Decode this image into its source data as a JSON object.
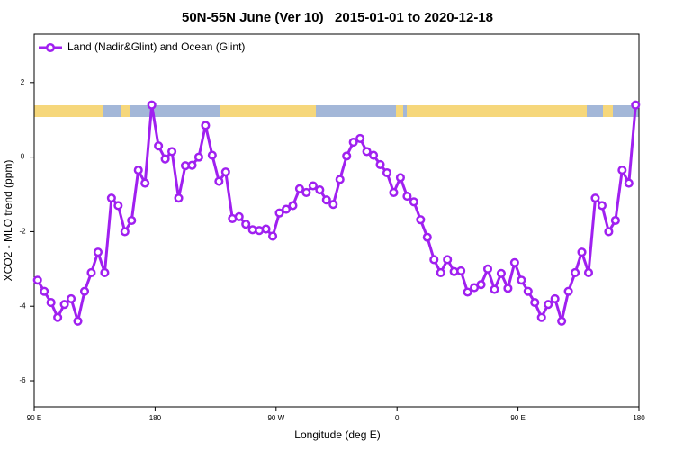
{
  "chart_data": {
    "type": "line",
    "title": "50N-55N June (Ver 10)   2015-01-01 to 2020-12-18",
    "x_label": "Longitude (deg E)",
    "y_label": "XCO2 - MLO trend (ppm)",
    "xlim": [
      90,
      540
    ],
    "ylim": [
      -6.7,
      3.3
    ],
    "xticks": [
      {
        "value": 90,
        "label": "90 E"
      },
      180,
      {
        "value": 270,
        "label": "90 W"
      },
      {
        "value": 360,
        "label": "0"
      },
      {
        "value": 450,
        "label": "90 E"
      },
      {
        "value": 540,
        "label": "180"
      }
    ],
    "yticks": [
      -6,
      -4,
      -2,
      0,
      2
    ],
    "legend": "top-left",
    "x": [
      92.5,
      97.5,
      102.5,
      107.5,
      112.5,
      117.5,
      122.5,
      127.5,
      132.5,
      137.5,
      142.5,
      147.5,
      152.5,
      157.5,
      162.5,
      167.5,
      172.5,
      177.5,
      182.5,
      187.5,
      192.5,
      197.5,
      202.5,
      207.5,
      212.5,
      217.5,
      222.5,
      227.5,
      232.5,
      237.5,
      242.5,
      247.5,
      252.5,
      257.5,
      262.5,
      267.5,
      272.5,
      277.5,
      282.5,
      287.5,
      292.5,
      297.5,
      302.5,
      307.5,
      312.5,
      317.5,
      322.5,
      327.5,
      332.5,
      337.5,
      342.5,
      347.5,
      352.5,
      357.5,
      362.5,
      367.5,
      372.5,
      377.5,
      382.5,
      387.5,
      392.5,
      397.5,
      402.5,
      407.5,
      412.5,
      417.5,
      422.5,
      427.5,
      432.5,
      437.5,
      442.5,
      447.5,
      452.5,
      457.5,
      462.5,
      467.5,
      472.5,
      477.5,
      482.5,
      487.5,
      492.5,
      497.5,
      502.5,
      507.5,
      512.5,
      517.5,
      522.5,
      527.5,
      532.5,
      537.5
    ],
    "series": [
      {
        "name": "Land (Nadir&Glint) and Ocean (Glint)",
        "color": "#a020f0",
        "values": [
          -3.3,
          -3.6,
          -3.9,
          -4.3,
          -3.95,
          -3.8,
          -4.4,
          -3.6,
          -3.1,
          -2.55,
          -3.1,
          -1.1,
          -1.3,
          -2.0,
          -1.7,
          -0.35,
          -0.7,
          1.4,
          0.3,
          -0.05,
          0.15,
          -1.1,
          -0.23,
          -0.22,
          0.0,
          0.85,
          0.05,
          -0.65,
          -0.4,
          -1.65,
          -1.6,
          -1.8,
          -1.95,
          -1.97,
          -1.93,
          -2.12,
          -1.5,
          -1.4,
          -1.3,
          -0.85,
          -0.95,
          -0.77,
          -0.88,
          -1.15,
          -1.27,
          -0.6,
          0.03,
          0.4,
          0.5,
          0.15,
          0.05,
          -0.2,
          -0.42,
          -0.95,
          -0.55,
          -1.05,
          -1.2,
          -1.68,
          -2.15,
          -2.75,
          -3.1,
          -2.75,
          -3.07,
          -3.05,
          -3.62,
          -3.5,
          -3.42,
          -3.0,
          -3.55,
          -3.12,
          -3.52,
          -2.83,
          -3.3,
          -3.6,
          -3.9,
          -4.3,
          -3.95,
          -3.8,
          -4.4,
          -3.6,
          -3.1,
          -2.55,
          -3.1,
          -1.1,
          -1.3,
          -2.0,
          -1.7,
          -0.35,
          -0.7,
          1.4
        ]
      }
    ]
  }
}
